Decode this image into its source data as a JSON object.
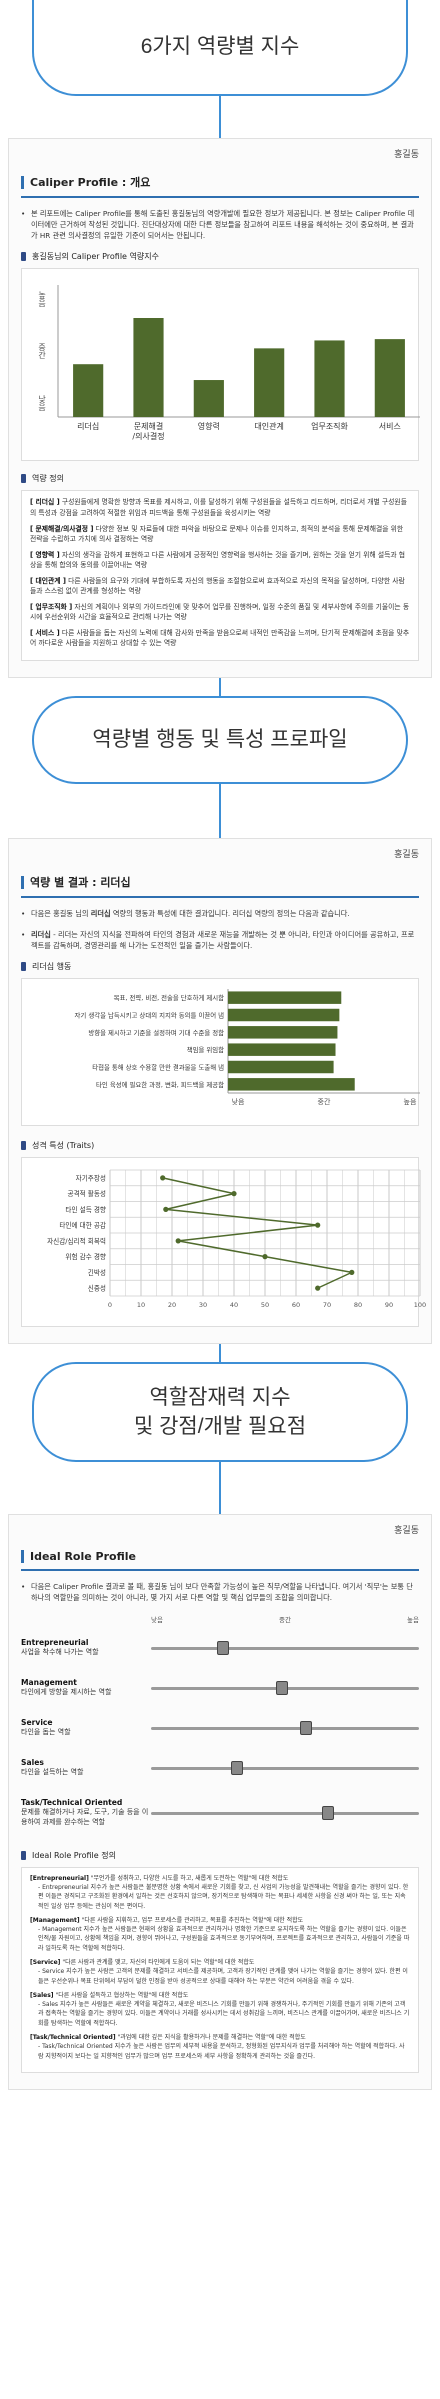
{
  "sections": {
    "s1_title": "6가지 역량별 지수",
    "s2_title": "역량별 행동 및 특성 프로파일",
    "s3_title_line1": "역할잠재력 지수",
    "s3_title_line2": "및 강점/개발 필요점"
  },
  "author": "홍길동",
  "page1": {
    "heading": "Caliper Profile : 개요",
    "intro": "본 리포트에는 Caliper Profile를 통해 도출된 홍길동님의 역량개발에 필요한 정보가 제공됩니다. 본 정보는 Caliper Profile 데이터에만 근거하여 작성된 것입니다. 진단대상자에 대한 다른 정보들을 참고하여 리포트 내용을 해석하는 것이 중요하며, 본 결과가 HR 관련 의사결정의 유일한 기준이 되어서는 안됩니다.",
    "chart_heading": "홍길동님의 Caliper Profile 역량지수",
    "def_heading": "역량 정의",
    "definitions": [
      {
        "term": "[ 리더십 ]",
        "text": " 구성원들에게 명확한 방향과 목표를 제시하고, 이를 달성하기 위해 구성원들을 설득하고 리드하며, 리더로서 개별 구성원들의 특성과 강점을 고려하여 적절한 위임과 피드백을 통해 구성원들을 육성시키는 역량"
      },
      {
        "term": "[ 문제해결/의사결정 ]",
        "text": " 다양한 정보 및 자료들에 대한 파악을 바탕으로 문제나 이슈를 인지하고, 최적의 분석을 통해 문제해결을 위한 전략을 수립하고 가치에 의사 결정하는 역량"
      },
      {
        "term": "[ 영향력 ]",
        "text": " 자신의 생각을 감하게 표현하고 다른 사람에게 긍정적인 영향력을 행사하는 것을 즐기며, 원하는 것을 얻기 위해 설득과 협상을 통해 합의와 동의를 이끌어내는 역량"
      },
      {
        "term": "[ 대인관계 ]",
        "text": " 다른 사람들의 요구와 기대에 부합하도록 자신의 행동을 조절함으로써 효과적으로 자신의 목적을 달성하며, 다양한 사람들과 스스럼 없이 관계를 형성하는 역량"
      },
      {
        "term": "[ 업무조직화 ]",
        "text": " 자신의 계획이나 외부의 가이드라인에 맞 맞추어 업무를 진행하며, 일정 수준의 품질 및 세부사항에 주의를 기울이는 동시에 우선순위와 시간을 효율적으로 관리해 나가는 역량"
      },
      {
        "term": "[ 서비스 ]",
        "text": " 다른 사람들을 돕는 자신의 노력에 대해 감사와 만족을 받음으로써 내적인 만족감을 느끼며, 단기적 문제해결에 초점을 맞추어 까다로운 사람들을 지원하고 상대할 수 있는 역량"
      }
    ]
  },
  "page2": {
    "heading": "역량 별 결과 : 리더십",
    "intro_pre": "다음은 홍길동 님의 ",
    "intro_bold": "리더십",
    "intro_post": " 역량의 행동과 특성에 대한 결과입니다. 리더십 역량의 정의는 다음과 같습니다.",
    "definition_term": "리더십",
    "definition_text": " - 리더는 자신의 지식을 전파하여 타인의 경험과 새로운 재능을 개발하는 것 뿐 아니라, 타인과 아이디어를 공유하고, 프로젝트를 감독하며, 경영관리를 해 나가는 도전적인 일을 즐기는 사람들이다.",
    "behavior_heading": "리더십 행동",
    "traits_heading": "성격 특성 (Traits)"
  },
  "page3": {
    "heading": "Ideal Role Profile",
    "intro": "다음은 Caliper Profile 결과로 볼 때, 홍길동 님이 보다 만족할 가능성이 높은 직무/역할을 나타냅니다. 여기서 '직무'는 보통 단 하나의 역할만을 의미하는 것이 아니라, 몇 가지 서로 다른 역할 및 핵심 업무들의 조합을 의미합니다.",
    "scale": [
      "낮음",
      "중간",
      "높음"
    ],
    "roles": [
      {
        "name": "Entrepreneurial",
        "desc": "사업을 착수해 나가는 역할",
        "value": 0.27
      },
      {
        "name": "Management",
        "desc": "타인에게 방향을 제시하는 역할",
        "value": 0.49
      },
      {
        "name": "Service",
        "desc": "타인을 돕는 역할",
        "value": 0.58
      },
      {
        "name": "Sales",
        "desc": "타인을 설득하는 역할",
        "value": 0.32
      },
      {
        "name": "Task/Technical Oriented",
        "desc": "문제를 해결하거나 자료, 도구, 기술 등을 이용하여 과제를 완수하는 역할",
        "value": 0.66
      }
    ],
    "def_heading": "Ideal Role Profile 정의",
    "definitions": [
      {
        "term": "[Entrepreneurial]",
        "text": " \"무언가를 성취하고, 다양한 시도를 하고, 새롭게 도전하는 역할\"에 대한 적합도",
        "detail": "- Entrepreneurial 지수가 높은 사람들은 불분명한 상황 속에서 새로운 기회를 찾고, 신 사업의 가능성을 발견해내는 역할을 즐기는 경향이 있다. 한편 이들은 경직되고 구조화된 환경에서 일하는 것은 선호하지 않으며, 장기적으로 탐색해야 하는 목표나 세세한 사항을 신경 써야 하는 일, 또는 지속적인 일상 업무 등에는 관심이 적은 편이다."
      },
      {
        "term": "[Management]",
        "text": " \"다른 사람을 지휘하고, 업무 프로세스를 관리하고, 목표를 추진하는 역할\"에 대한 적합도",
        "detail": "- Management 지수가 높은 사람들은 현재의 상황을 효과적으로 관리하거나 명확한 기준으로 유지하도록 하는 역할을 즐기는 경향이 있다. 이들은 인적/물 자원이고, 상황에 책임을 지며, 경향이 뛰어나고, 구성원들을 효과적으로 동기부여하며, 프로젝트를 효과적으로 관리하고, 사람들이 기준을 따라 일하도록 하는 역할에 적합하다."
      },
      {
        "term": "[Service]",
        "text": " \"다른 사람과 관계를 맺고, 자신의 타인에게 도움이 되는 역할\"에 대한 적합도",
        "detail": "- Service 지수가 높은 사람은 고객의 문제를 해결하고 서비스를 제공하며, 고객과 장기적인 관계를 맺어 나가는 역할을 즐기는 경향이 있다. 한편 이들은 우선순위나 목표 단위에서 부담이 덜한 인정을 받아 성공적으로 상대를 대해야 하는 부분은 약간의 어려움을 겪을 수 있다."
      },
      {
        "term": "[Sales]",
        "text": " \"다른 사람을 설득하고 협상하는 역할\"에 대한 적합도",
        "detail": "- Sales 지수가 높은 사람들은 새로운 계약을 체결하고, 새로운 비즈니스 기회를 만들기 위해 경쟁하거나, 주기적인 기회를 만들기 위해 기존의 고객과 접촉하는 역할을 즐기는 경향이 있다. 이들은 계약이나 거래를 성사시키는 데서 성취감을 느끼며, 비즈니스 관계를 이끌어가며, 새로운 비즈니스 기회를 탐색하는 역할에 적합하다."
      },
      {
        "term": "[Task/Technical Oriented]",
        "text": " \"과업에 대한 깊은 지식을 활용하거나 문제를 해결하는 역할\"에 대한 적합도",
        "detail": "- Task/Technical Oriented 지수가 높은 사람은 업무의 세부적 내용을 분석하고, 정형화된 업무지식과 업무를 처리해야 하는 역할에 적합하다. 사람 지향적이지 보다는 일 지향적인 업무가 많으며 업무 프로세스와 세부 사항을 정확하게 관리하는 것을 즐긴다."
      }
    ]
  },
  "chart_data": [
    {
      "type": "bar",
      "categories": [
        "리더십",
        "문제해결\n/의사결정",
        "영향력",
        "대인관계",
        "업무조직화",
        "서비스"
      ],
      "values": [
        40,
        75,
        28,
        52,
        58,
        59
      ],
      "ylabels": [
        "높음",
        "중간",
        "낮음"
      ],
      "ylim": [
        0,
        100
      ],
      "color": "#4f6a2c"
    },
    {
      "type": "bar",
      "orientation": "horizontal",
      "categories": [
        "목표, 전략, 비전, 전술을 단호하게 제시함",
        "자기 생각을 납득시키고 상대의 지지와 동의를 이끌어 냄",
        "방향을 제시하고 기준을 설정하며 기대 수준을 정함",
        "책임을 위임함",
        "타협을 통해 상호 수용할 만한 결과물을 도출해 냄",
        "타인 육성에 필요한 과정, 변화, 피드백을 제공함"
      ],
      "values": [
        59,
        58,
        57,
        56,
        55,
        66
      ],
      "xlabels": [
        "낮음",
        "중간",
        "높음"
      ],
      "xlim": [
        0,
        100
      ],
      "color": "#4f6a2c"
    },
    {
      "type": "line",
      "categories": [
        "자기주장성",
        "공격적 활동성",
        "타인 설득 경향",
        "타인에 대한 공감",
        "자신감/심리적 회복력",
        "위험 감수 경향",
        "긴박성",
        "신중성"
      ],
      "values": [
        17,
        40,
        18,
        67,
        22,
        50,
        78,
        67
      ],
      "xticks": [
        0,
        10,
        20,
        30,
        40,
        50,
        60,
        70,
        80,
        90,
        100
      ],
      "xlim": [
        0,
        100
      ],
      "color": "#4f6a2c"
    }
  ]
}
